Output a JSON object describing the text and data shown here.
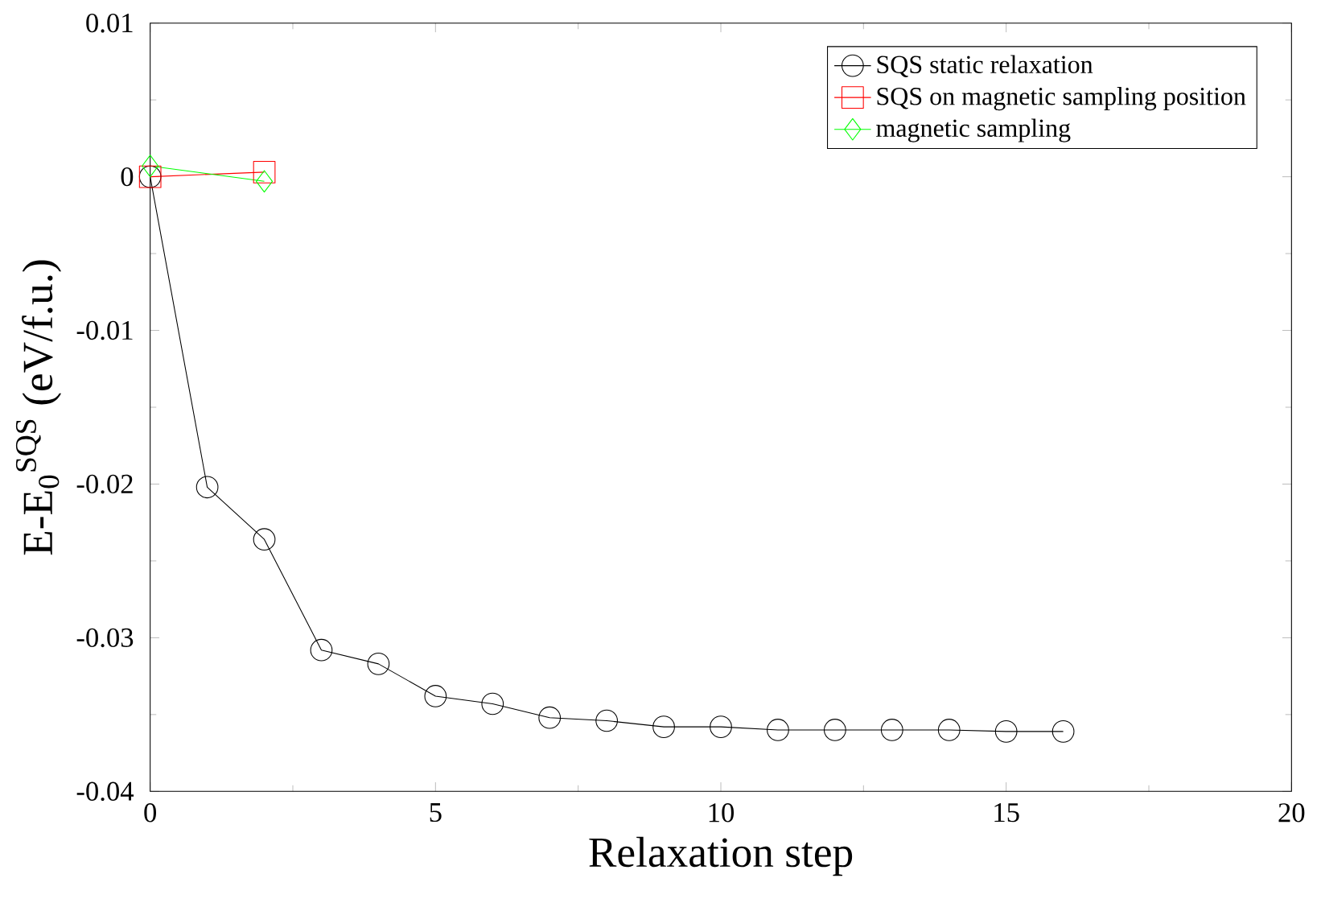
{
  "chart_data": {
    "type": "line",
    "xlabel": "Relaxation step",
    "ylabel": "E-E$_{0}$$^{SQS}$ (eV/f.u.)",
    "xlim": [
      0,
      20
    ],
    "xticks": [
      0,
      5,
      10,
      15,
      20
    ],
    "ylim": [
      -0.04,
      0.01
    ],
    "yticks": [
      -0.04,
      -0.03,
      -0.02,
      -0.01,
      0,
      0.01
    ],
    "grid": false,
    "legend": "top right",
    "line_style": "solid",
    "series": [
      {
        "name": "SQS static relaxation",
        "color": "#000000",
        "marker": "circle",
        "x": [
          0,
          1,
          2,
          3,
          4,
          5,
          6,
          7,
          8,
          9,
          10,
          11,
          12,
          13,
          14,
          15,
          16
        ],
        "values": [
          0,
          -0.0202,
          -0.0236,
          -0.0308,
          -0.0317,
          -0.0338,
          -0.0343,
          -0.0352,
          -0.0354,
          -0.0358,
          -0.0358,
          -0.036,
          -0.036,
          -0.036,
          -0.036,
          -0.0361,
          -0.0361
        ]
      },
      {
        "name": "SQS on magnetic sampling position",
        "color": "#ff0000",
        "marker": "square",
        "x": [
          0,
          2
        ],
        "values": [
          0,
          0.0003
        ]
      },
      {
        "name": "magnetic sampling",
        "color": "#00ff00",
        "marker": "diamond",
        "x": [
          0,
          2
        ],
        "values": [
          0.0007,
          -0.0003
        ]
      }
    ]
  }
}
